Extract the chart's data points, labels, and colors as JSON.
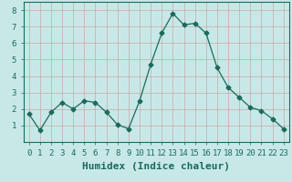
{
  "xlabel": "Humidex (Indice chaleur)",
  "x_values": [
    0,
    1,
    2,
    3,
    4,
    5,
    6,
    7,
    8,
    9,
    10,
    11,
    12,
    13,
    14,
    15,
    16,
    17,
    18,
    19,
    20,
    21,
    22,
    23
  ],
  "y_values": [
    1.7,
    0.7,
    1.8,
    2.4,
    2.0,
    2.5,
    2.4,
    1.8,
    1.05,
    0.8,
    2.5,
    4.7,
    6.6,
    7.8,
    7.1,
    7.2,
    6.6,
    4.5,
    3.3,
    2.7,
    2.1,
    1.9,
    1.4,
    0.8
  ],
  "line_color": "#1a6b5a",
  "marker": "D",
  "markersize": 2.5,
  "linewidth": 0.9,
  "bg_color": "#c8e8e8",
  "grid_color": "#c8a8a8",
  "plot_bg_color": "#c8e8e8",
  "ylim": [
    0,
    8.5
  ],
  "xlim": [
    -0.5,
    23.5
  ],
  "yticks": [
    1,
    2,
    3,
    4,
    5,
    6,
    7,
    8
  ],
  "xticks": [
    0,
    1,
    2,
    3,
    4,
    5,
    6,
    7,
    8,
    9,
    10,
    11,
    12,
    13,
    14,
    15,
    16,
    17,
    18,
    19,
    20,
    21,
    22,
    23
  ],
  "tick_fontsize": 6.5,
  "xlabel_fontsize": 8,
  "tick_color": "#1a6b5a",
  "xlabel_color": "#1a6b5a"
}
